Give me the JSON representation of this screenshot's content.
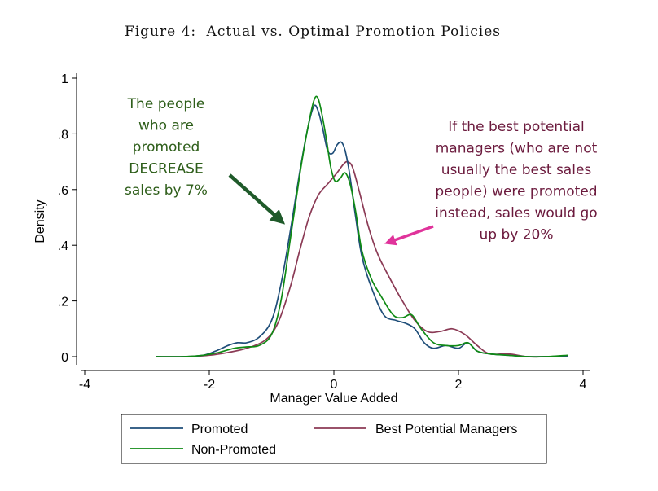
{
  "figure": {
    "title_prefix": "Figure 4:",
    "title_text": "Actual vs. Optimal Promotion Policies"
  },
  "annotations": {
    "left": {
      "lines": [
        "The people",
        "who are",
        "promoted",
        "DECREASE",
        "sales  by 7%"
      ],
      "color": "#2e5e1a",
      "arrow_color": "#1f5a2a"
    },
    "right": {
      "lines": [
        "If the best potential",
        "managers (who are not",
        "usually the best sales",
        "people) were promoted",
        "instead, sales would go",
        "up by 20%"
      ],
      "color": "#6b1a3d",
      "arrow_color": "#e0339b"
    }
  },
  "chart_data": {
    "type": "line",
    "title": "Figure 4: Actual vs. Optimal Promotion Policies",
    "xlabel": "Manager Value Added",
    "ylabel": "Density",
    "xlim": [
      -4.2,
      4.1
    ],
    "ylim": [
      -0.02,
      1.02
    ],
    "xticks": [
      -4,
      -2,
      0,
      2,
      4
    ],
    "xtick_labels": [
      "-4",
      "-2",
      "0",
      "2",
      "4"
    ],
    "yticks": [
      0,
      0.2,
      0.4,
      0.6,
      0.8,
      1
    ],
    "ytick_labels": [
      "0",
      ".2",
      ".4",
      ".6",
      ".8",
      "1"
    ],
    "grid": false,
    "legend_position": "bottom",
    "series": [
      {
        "name": "Promoted",
        "color": "#1f4e79",
        "x": [
          -2.85,
          -2.4,
          -2.1,
          -1.9,
          -1.7,
          -1.55,
          -1.4,
          -1.2,
          -1.0,
          -0.85,
          -0.7,
          -0.55,
          -0.42,
          -0.32,
          -0.25,
          -0.18,
          -0.1,
          -0.02,
          0.05,
          0.12,
          0.18,
          0.25,
          0.35,
          0.45,
          0.6,
          0.8,
          1.0,
          1.15,
          1.3,
          1.45,
          1.6,
          1.8,
          2.0,
          2.15,
          2.3,
          2.5,
          2.8,
          3.1,
          3.4,
          3.75
        ],
        "y": [
          0.0,
          0.0,
          0.005,
          0.02,
          0.04,
          0.05,
          0.05,
          0.07,
          0.13,
          0.26,
          0.45,
          0.66,
          0.82,
          0.9,
          0.88,
          0.82,
          0.74,
          0.73,
          0.76,
          0.77,
          0.74,
          0.66,
          0.5,
          0.36,
          0.25,
          0.15,
          0.13,
          0.12,
          0.1,
          0.05,
          0.03,
          0.04,
          0.03,
          0.05,
          0.02,
          0.01,
          0.005,
          0.0,
          0.0,
          0.0
        ]
      },
      {
        "name": "Non-Promoted",
        "color": "#0f8a14",
        "x": [
          -2.85,
          -2.4,
          -2.1,
          -1.85,
          -1.6,
          -1.4,
          -1.2,
          -1.0,
          -0.85,
          -0.7,
          -0.55,
          -0.42,
          -0.32,
          -0.26,
          -0.2,
          -0.12,
          -0.05,
          0.02,
          0.1,
          0.18,
          0.26,
          0.35,
          0.45,
          0.6,
          0.75,
          0.95,
          1.1,
          1.25,
          1.4,
          1.6,
          1.8,
          2.0,
          2.15,
          2.3,
          2.5,
          2.8,
          3.1,
          3.4,
          3.75
        ],
        "y": [
          0.0,
          0.0,
          0.005,
          0.015,
          0.03,
          0.035,
          0.04,
          0.08,
          0.2,
          0.42,
          0.65,
          0.82,
          0.92,
          0.93,
          0.88,
          0.78,
          0.68,
          0.63,
          0.64,
          0.66,
          0.62,
          0.52,
          0.38,
          0.28,
          0.22,
          0.15,
          0.14,
          0.15,
          0.1,
          0.05,
          0.04,
          0.04,
          0.05,
          0.02,
          0.01,
          0.005,
          0.0,
          0.0,
          0.005
        ]
      },
      {
        "name": "Best Potential Managers",
        "color": "#8b3a55",
        "x": [
          -2.85,
          -2.4,
          -2.0,
          -1.7,
          -1.4,
          -1.1,
          -0.9,
          -0.7,
          -0.55,
          -0.4,
          -0.25,
          -0.1,
          0.05,
          0.15,
          0.22,
          0.3,
          0.4,
          0.55,
          0.7,
          0.9,
          1.1,
          1.3,
          1.5,
          1.7,
          1.9,
          2.1,
          2.3,
          2.5,
          2.8,
          3.1,
          3.4,
          3.75
        ],
        "y": [
          0.0,
          0.0,
          0.005,
          0.015,
          0.03,
          0.06,
          0.12,
          0.25,
          0.38,
          0.5,
          0.58,
          0.62,
          0.66,
          0.69,
          0.7,
          0.68,
          0.6,
          0.47,
          0.37,
          0.28,
          0.2,
          0.13,
          0.09,
          0.09,
          0.1,
          0.08,
          0.04,
          0.01,
          0.01,
          0.0,
          0.0,
          0.0
        ]
      }
    ],
    "legend": [
      {
        "name": "Promoted",
        "color": "#1f4e79"
      },
      {
        "name": "Best Potential Managers",
        "color": "#8b3a55"
      },
      {
        "name": "Non-Promoted",
        "color": "#0f8a14"
      }
    ]
  }
}
